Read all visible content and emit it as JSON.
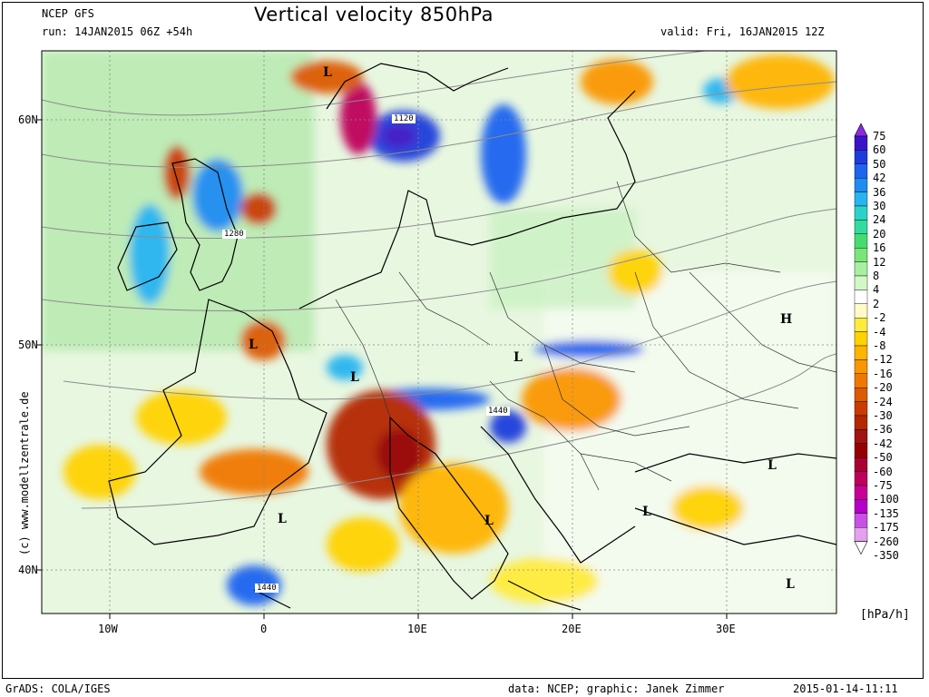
{
  "header": {
    "model": "NCEP GFS",
    "title": "Vertical velocity 850hPa",
    "run": "run: 14JAN2015 06Z +54h",
    "valid": "valid: Fri, 16JAN2015 12Z"
  },
  "side_credit": "(c) www.modellzentrale.de",
  "footer": {
    "software": "GrADS: COLA/IGES",
    "data_credit": "data: NCEP; graphic: Janek Zimmer",
    "timestamp": "2015-01-14-11:11"
  },
  "axes": {
    "lat_labels": [
      "60N",
      "50N",
      "40N"
    ],
    "lon_labels": [
      "10W",
      "0",
      "10E",
      "20E",
      "30E"
    ]
  },
  "legend": {
    "unit": "[hPa/h]",
    "levels": [
      "75",
      "60",
      "50",
      "42",
      "36",
      "30",
      "24",
      "20",
      "16",
      "12",
      "8",
      "4",
      "2",
      "-2",
      "-4",
      "-8",
      "-12",
      "-16",
      "-20",
      "-24",
      "-30",
      "-36",
      "-42",
      "-50",
      "-60",
      "-75",
      "-100",
      "-135",
      "-175",
      "-260",
      "-350"
    ],
    "colors": [
      "#8a2be2",
      "#3c14c8",
      "#1e3cdc",
      "#1e64f0",
      "#1e8cf0",
      "#28b4f0",
      "#2cd2c8",
      "#32dca0",
      "#46dc6e",
      "#78e678",
      "#a8f0a0",
      "#d2f8c8",
      "#ffffff",
      "#fffac8",
      "#ffeb3c",
      "#ffd200",
      "#ffb400",
      "#fa9600",
      "#f07800",
      "#dc5a00",
      "#c83c00",
      "#b42800",
      "#a01414",
      "#960000",
      "#aa0032",
      "#be005a",
      "#c80096",
      "#b400c8",
      "#c850e6",
      "#e6a0f0"
    ]
  },
  "pressure_systems": [
    {
      "label": "L"
    },
    {
      "label": "L"
    },
    {
      "label": "L"
    },
    {
      "label": "L"
    },
    {
      "label": "L"
    },
    {
      "label": "L"
    },
    {
      "label": "L"
    },
    {
      "label": "L"
    },
    {
      "label": "L"
    },
    {
      "label": "H"
    }
  ],
  "contour_labels": [
    "1120",
    "1280",
    "1440",
    "1440"
  ]
}
